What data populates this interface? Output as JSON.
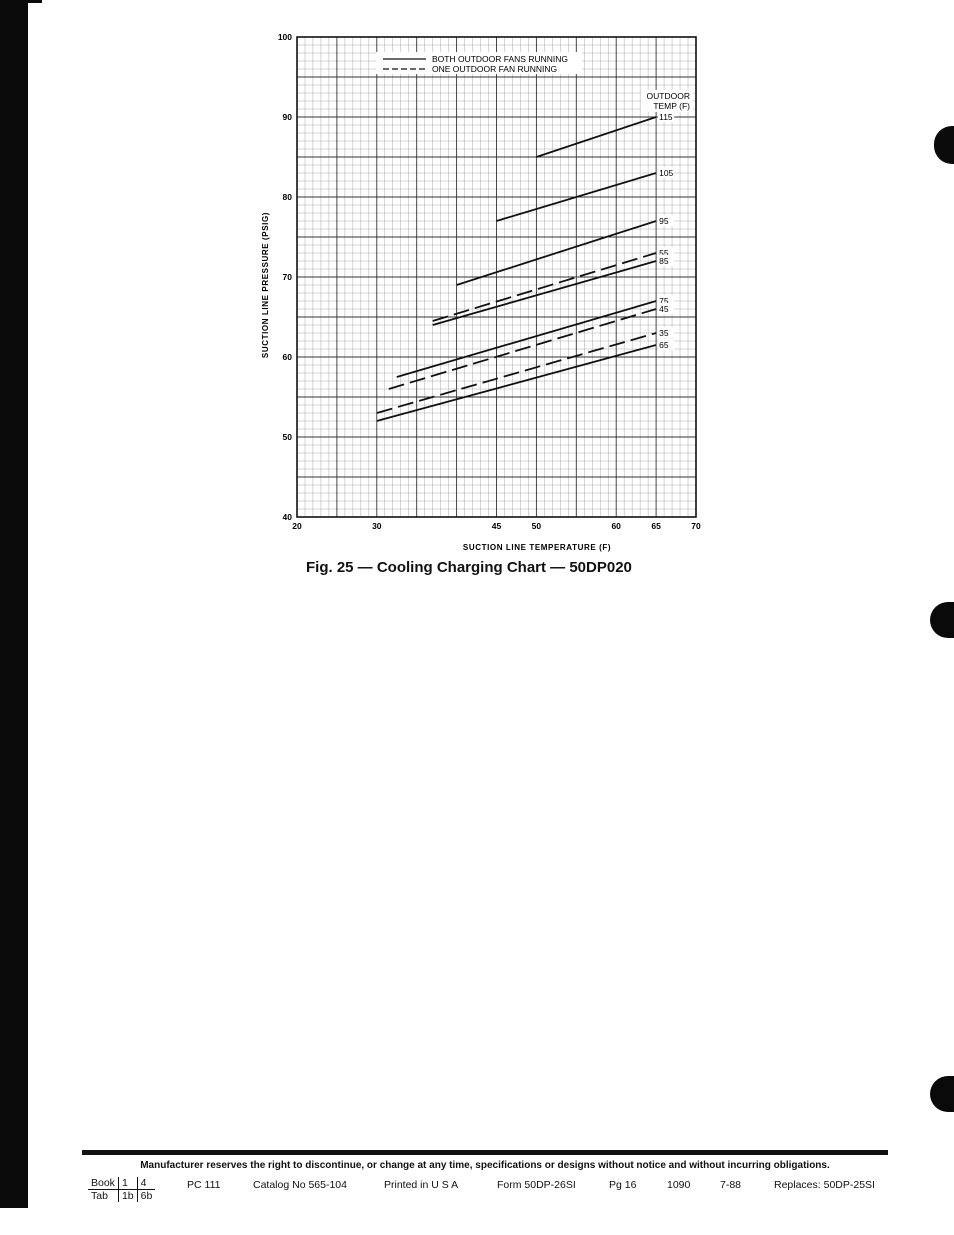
{
  "chart_data": {
    "type": "line",
    "xlabel": "SUCTION LINE TEMPERATURE (F)",
    "ylabel": "SUCTION LINE PRESSURE (PSIG)",
    "xlim": [
      20,
      70
    ],
    "ylim": [
      40,
      100
    ],
    "xticks": [
      20,
      30,
      45,
      50,
      60,
      65,
      70
    ],
    "yticks": [
      40,
      50,
      60,
      70,
      80,
      90,
      100
    ],
    "grid": true,
    "legend_position": "top",
    "legend": [
      {
        "label": "BOTH OUTDOOR FANS RUNNING",
        "style": "solid"
      },
      {
        "label": "ONE OUTDOOR FAN RUNNING",
        "style": "dashed"
      }
    ],
    "curve_group_label": "OUTDOOR TEMP (F)",
    "curve_group_label_lines": [
      "OUTDOOR",
      "TEMP (F)"
    ],
    "series": [
      {
        "name": "115",
        "style": "solid",
        "x": [
          50,
          65
        ],
        "y": [
          85,
          90
        ]
      },
      {
        "name": "105",
        "style": "solid",
        "x": [
          45,
          65
        ],
        "y": [
          77,
          83
        ]
      },
      {
        "name": "95",
        "style": "solid",
        "x": [
          40,
          65
        ],
        "y": [
          69,
          77
        ]
      },
      {
        "name": "55",
        "style": "dashed",
        "x": [
          37,
          65
        ],
        "y": [
          64.5,
          73
        ]
      },
      {
        "name": "85",
        "style": "solid",
        "x": [
          37,
          65
        ],
        "y": [
          64,
          72
        ]
      },
      {
        "name": "75",
        "style": "solid",
        "x": [
          32.5,
          65
        ],
        "y": [
          57.5,
          67
        ]
      },
      {
        "name": "45",
        "style": "dashed",
        "x": [
          31.5,
          65
        ],
        "y": [
          56,
          66
        ]
      },
      {
        "name": "35",
        "style": "dashed",
        "x": [
          30,
          65
        ],
        "y": [
          53,
          63
        ]
      },
      {
        "name": "65",
        "style": "solid",
        "x": [
          30,
          65
        ],
        "y": [
          52,
          61.5
        ]
      }
    ]
  },
  "figure": {
    "caption": "Fig. 25 — Cooling Charging Chart — 50DP020"
  },
  "footer": {
    "disclaimer": "Manufacturer reserves the right to discontinue, or change at any time, specifications or designs without notice and without incurring obligations.",
    "book_label": "Book",
    "book_values": [
      "1",
      "4"
    ],
    "tab_label": "Tab",
    "tab_values": [
      "1b",
      "6b"
    ],
    "pc": "PC 111",
    "catalog": "Catalog No 565-104",
    "printed": "Printed in U S A",
    "form": "Form 50DP-26SI",
    "page": "Pg 16",
    "code": "1090",
    "date": "7-88",
    "replaces": "Replaces: 50DP-25SI"
  }
}
